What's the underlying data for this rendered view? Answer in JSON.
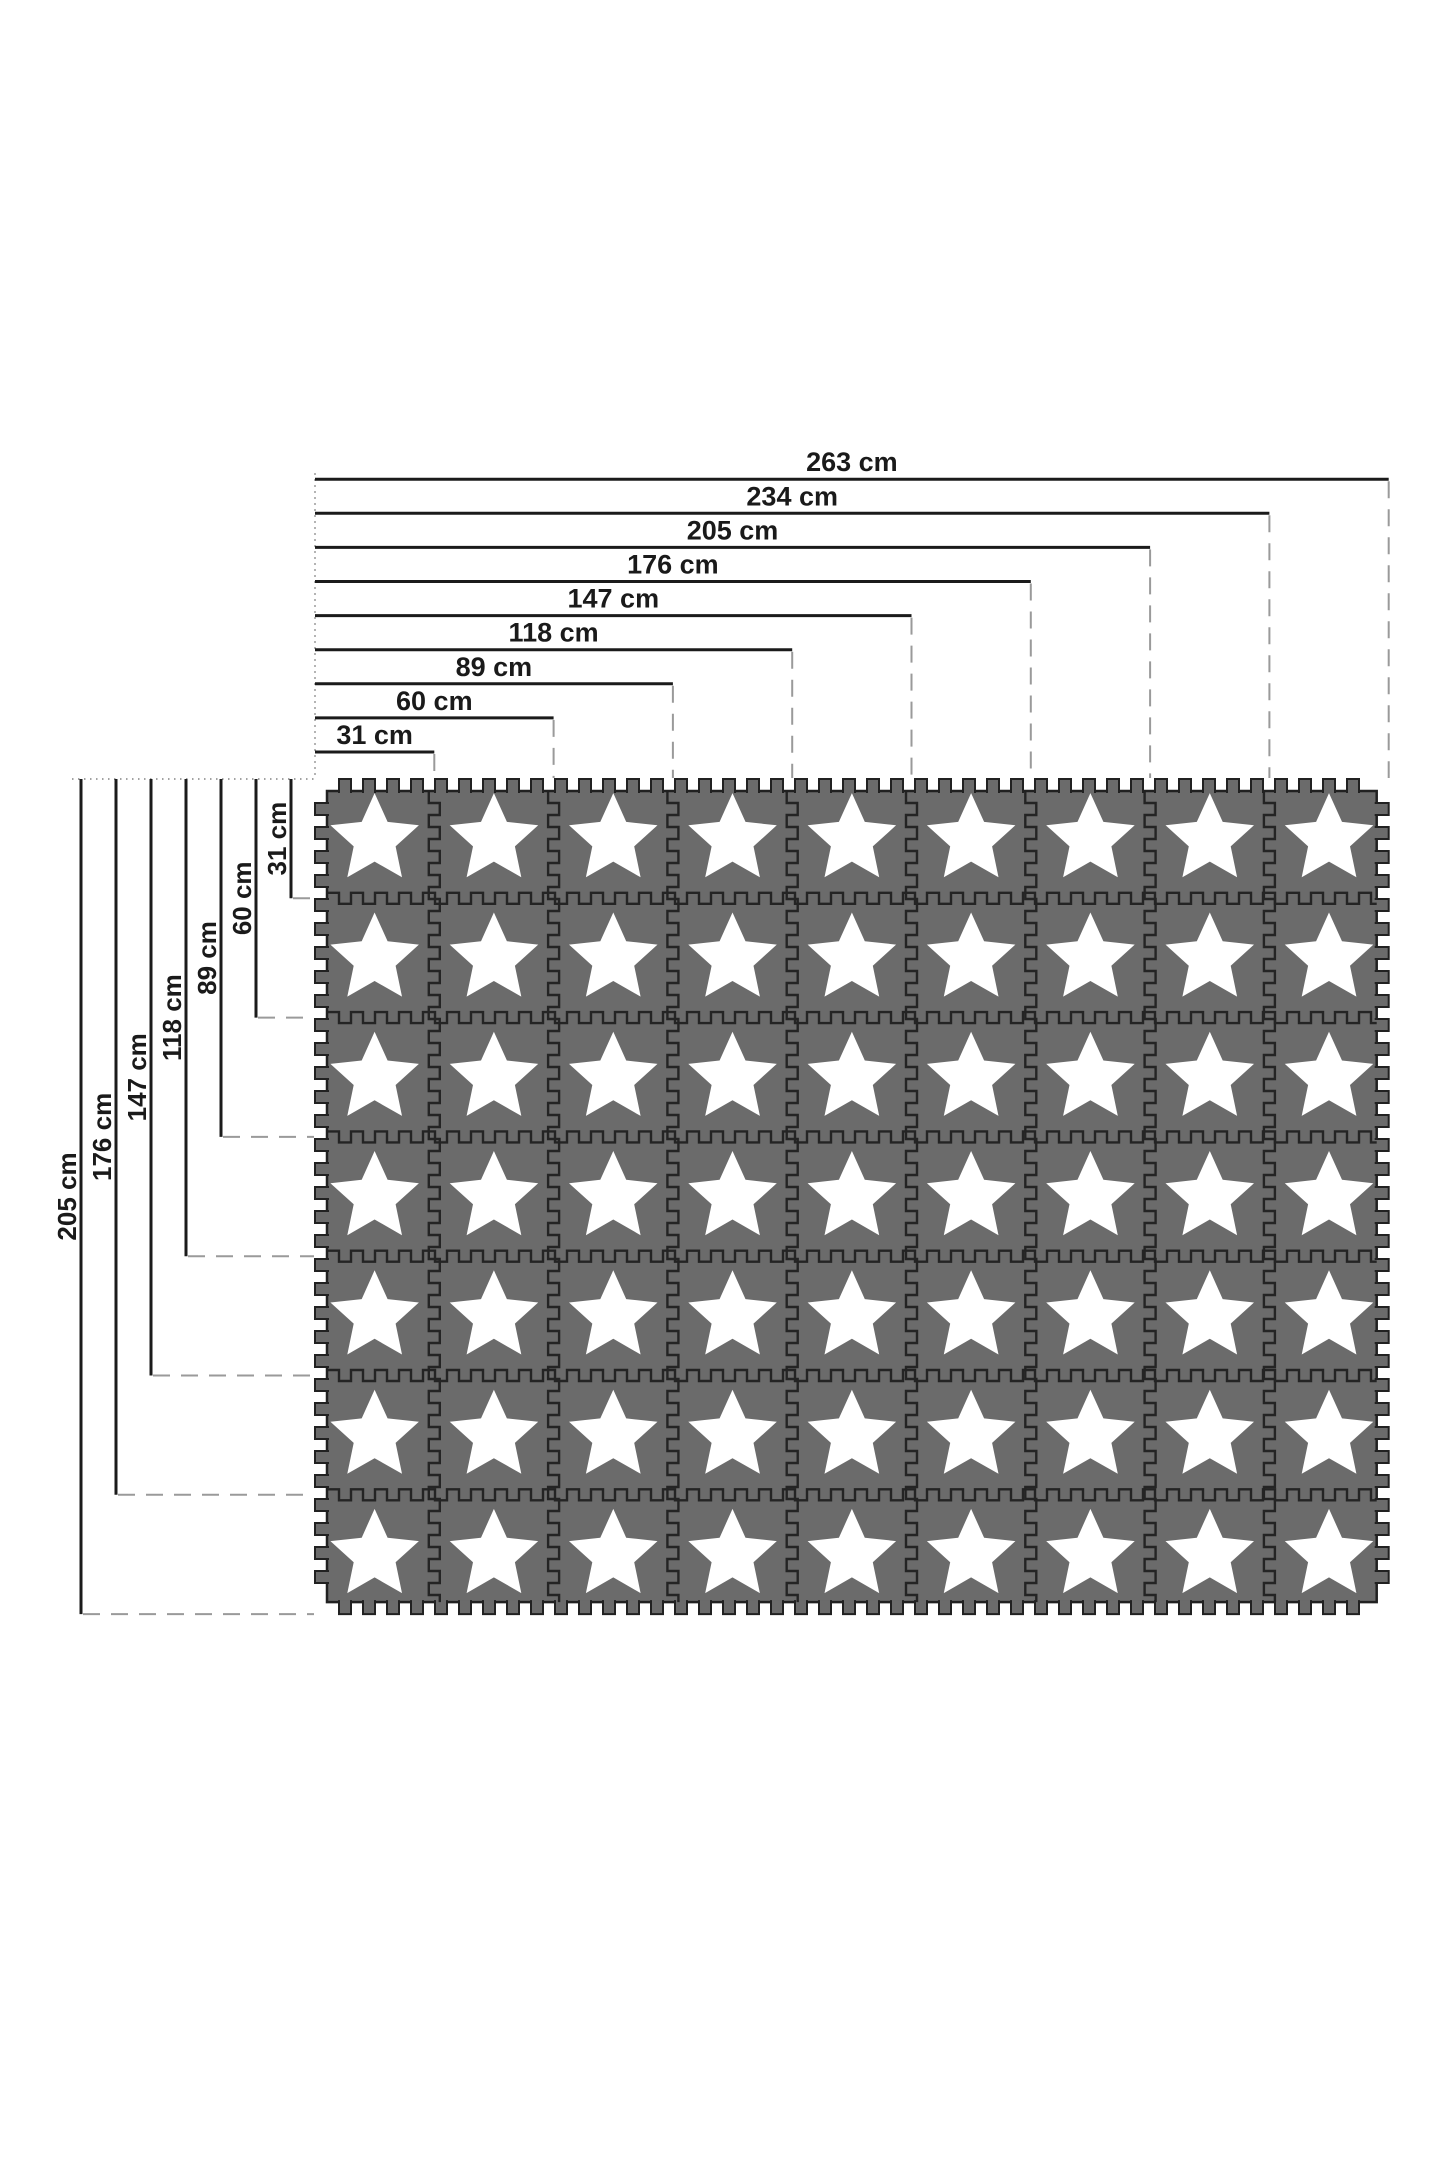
{
  "diagram": {
    "unit": "cm",
    "mat": {
      "rows": 7,
      "columns": 9,
      "tile_count": 63,
      "tile_icon": "puzzle-tile",
      "star_icon": "star",
      "tile_color": "#6b6b6b",
      "outline_color": "#212121",
      "star_color": "#ffffff"
    },
    "top_dimensions": [
      {
        "label": "263 cm",
        "tiles": 9
      },
      {
        "label": "234 cm",
        "tiles": 8
      },
      {
        "label": "205 cm",
        "tiles": 7
      },
      {
        "label": "176 cm",
        "tiles": 6
      },
      {
        "label": "147 cm",
        "tiles": 5
      },
      {
        "label": "118 cm",
        "tiles": 4
      },
      {
        "label": "89 cm",
        "tiles": 3
      },
      {
        "label": "60 cm",
        "tiles": 2
      },
      {
        "label": "31 cm",
        "tiles": 1
      }
    ],
    "left_dimensions": [
      {
        "label": "205 cm",
        "tiles": 7
      },
      {
        "label": "176 cm",
        "tiles": 6
      },
      {
        "label": "147 cm",
        "tiles": 5
      },
      {
        "label": "118 cm",
        "tiles": 4
      },
      {
        "label": "89 cm",
        "tiles": 3
      },
      {
        "label": "60 cm",
        "tiles": 2
      },
      {
        "label": "31 cm",
        "tiles": 1
      }
    ],
    "colors": {
      "background": "#ffffff",
      "dimension_line": "#1b1b1b",
      "dashed_guide": "#9a9a9a",
      "dotted_guide": "#838383",
      "label_text": "#1a1a1a"
    }
  }
}
